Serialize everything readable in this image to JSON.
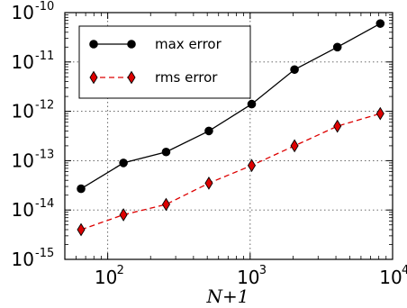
{
  "chart_data": {
    "type": "line",
    "title": "",
    "xlabel": "N+1",
    "ylabel": "",
    "xscale": "log",
    "yscale": "log",
    "xlim": [
      50,
      10000
    ],
    "ylim": [
      1e-15,
      1e-10
    ],
    "grid": true,
    "legend_position": "top-left",
    "x_ticks": [
      {
        "value": 100,
        "base": "10",
        "exp": "2"
      },
      {
        "value": 1000,
        "base": "10",
        "exp": "3"
      },
      {
        "value": 10000,
        "base": "10",
        "exp": "4"
      }
    ],
    "y_ticks": [
      {
        "value": 1e-15,
        "base": "10",
        "exp": "-15"
      },
      {
        "value": 1e-14,
        "base": "10",
        "exp": "-14"
      },
      {
        "value": 1e-13,
        "base": "10",
        "exp": "-13"
      },
      {
        "value": 1e-12,
        "base": "10",
        "exp": "-12"
      },
      {
        "value": 1e-11,
        "base": "10",
        "exp": "-11"
      },
      {
        "value": 1e-10,
        "base": "10",
        "exp": "-10"
      }
    ],
    "x": [
      65,
      129,
      257,
      513,
      1025,
      2049,
      4097,
      8193
    ],
    "series": [
      {
        "name": "max error",
        "color": "#000000",
        "marker": "circle",
        "dash": "solid",
        "values": [
          2.7e-14,
          9e-14,
          1.5e-13,
          4e-13,
          1.4e-12,
          7e-12,
          2e-11,
          6e-11
        ]
      },
      {
        "name": "rms error",
        "color": "#dd0000",
        "marker": "diamond",
        "dash": "dashed",
        "values": [
          4e-15,
          8e-15,
          1.3e-14,
          3.5e-14,
          8e-14,
          2e-13,
          5e-13,
          9e-13
        ]
      }
    ]
  }
}
